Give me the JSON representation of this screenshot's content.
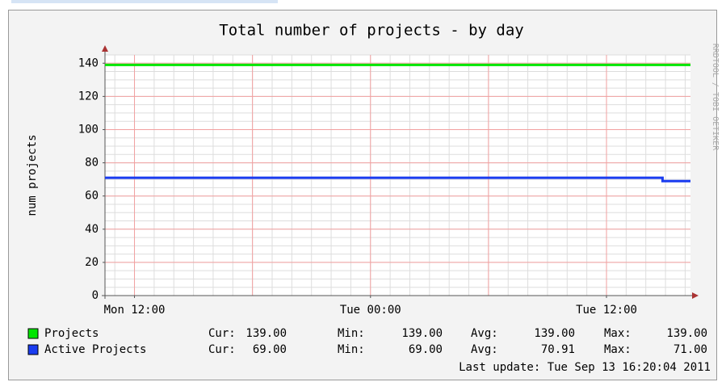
{
  "chart_data": {
    "type": "line",
    "title": "Total number of projects - by day",
    "ylabel": "num projects",
    "watermark": "RRDTOOL / TOBI OETIKER",
    "x": [
      10.5,
      38.85,
      38.85,
      40.27
    ],
    "xlim": [
      10.5,
      40.27
    ],
    "xticks": [
      {
        "value": 12,
        "label": "Mon 12:00"
      },
      {
        "value": 24,
        "label": "Tue 00:00"
      },
      {
        "value": 36,
        "label": "Tue 12:00"
      }
    ],
    "xgrid": [
      12,
      18,
      24,
      30,
      36
    ],
    "ylim": [
      0,
      145
    ],
    "yticks": [
      0,
      20,
      40,
      60,
      80,
      100,
      120,
      140
    ],
    "grid": true,
    "series": [
      {
        "name": "Projects",
        "color": "#00e600",
        "values": [
          139,
          139,
          139,
          139
        ],
        "stats": [
          {
            "label": "Cur:",
            "value": "139.00"
          },
          {
            "label": "Min:",
            "value": "139.00"
          },
          {
            "label": "Avg:",
            "value": "139.00"
          },
          {
            "label": "Max:",
            "value": "139.00"
          }
        ]
      },
      {
        "name": "Active Projects",
        "color": "#1a3cf0",
        "values": [
          71,
          71,
          69,
          69
        ],
        "stats": [
          {
            "label": "Cur:",
            "value": "69.00"
          },
          {
            "label": "Min:",
            "value": "69.00"
          },
          {
            "label": "Avg:",
            "value": "70.91"
          },
          {
            "label": "Max:",
            "value": "71.00"
          }
        ]
      }
    ],
    "last_update": "Last update: Tue Sep 13 16:20:04 2011"
  }
}
